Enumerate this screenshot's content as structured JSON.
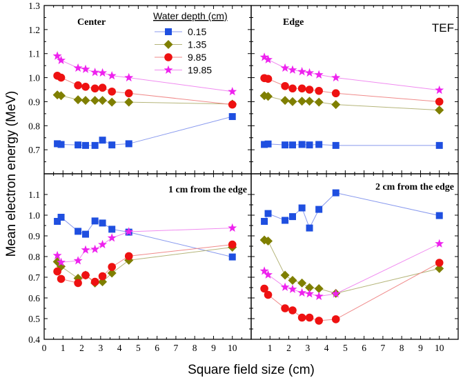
{
  "chart_data": {
    "type": "scatter",
    "xlabel": "Square field size (cm)",
    "ylabel": "Mean electron energy (MeV)",
    "xlim": [
      0,
      11
    ],
    "x_ticks": [
      "0",
      "1",
      "2",
      "3",
      "4",
      "5",
      "6",
      "7",
      "8",
      "9",
      "10"
    ],
    "top_ylim": [
      0.6,
      1.3
    ],
    "top_y_ticks": [
      "0.7",
      "0.8",
      "0.9",
      "1.0",
      "1.1",
      "1.2",
      "1.3"
    ],
    "bottom_ylim": [
      0.4,
      1.2
    ],
    "bottom_y_ticks": [
      "0.4",
      "0.5",
      "0.6",
      "0.7",
      "0.8",
      "0.9",
      "1.0",
      "1.1"
    ],
    "extra_label": "TEF",
    "legend": {
      "title": "Water depth (cm)",
      "placement": "top-left panel, upper center"
    },
    "series": [
      {
        "name": "0.15",
        "color": "#1f4fe0",
        "line_color": "#8899ee",
        "marker": "square"
      },
      {
        "name": "1.35",
        "color": "#7f7f00",
        "line_color": "#b5b57a",
        "marker": "diamond"
      },
      {
        "name": "9.85",
        "color": "#ee1111",
        "line_color": "#f08a8a",
        "marker": "circle"
      },
      {
        "name": "19.85",
        "color": "#ee22ee",
        "line_color": "#f08af0",
        "marker": "star"
      }
    ],
    "panels": [
      {
        "id": "center",
        "title": "Center",
        "row": "top",
        "col": "left",
        "values": {
          "0.15": [
            [
              0.7,
              0.725
            ],
            [
              0.9,
              0.722
            ],
            [
              1.8,
              0.72
            ],
            [
              2.2,
              0.718
            ],
            [
              2.7,
              0.718
            ],
            [
              3.1,
              0.74
            ],
            [
              3.6,
              0.72
            ],
            [
              4.5,
              0.725
            ],
            [
              10,
              0.838
            ]
          ],
          "1.35": [
            [
              0.7,
              0.928
            ],
            [
              0.9,
              0.925
            ],
            [
              1.8,
              0.908
            ],
            [
              2.2,
              0.905
            ],
            [
              2.7,
              0.905
            ],
            [
              3.1,
              0.905
            ],
            [
              3.6,
              0.898
            ],
            [
              4.5,
              0.898
            ],
            [
              10,
              0.89
            ]
          ],
          "9.85": [
            [
              0.7,
              1.008
            ],
            [
              0.9,
              1.0
            ],
            [
              1.8,
              0.968
            ],
            [
              2.2,
              0.962
            ],
            [
              2.7,
              0.955
            ],
            [
              3.1,
              0.958
            ],
            [
              3.6,
              0.942
            ],
            [
              4.5,
              0.935
            ],
            [
              10,
              0.888
            ]
          ],
          "19.85": [
            [
              0.7,
              1.09
            ],
            [
              0.9,
              1.072
            ],
            [
              1.8,
              1.04
            ],
            [
              2.2,
              1.035
            ],
            [
              2.7,
              1.022
            ],
            [
              3.1,
              1.02
            ],
            [
              3.6,
              1.008
            ],
            [
              4.5,
              1.0
            ],
            [
              10,
              0.942
            ]
          ]
        }
      },
      {
        "id": "edge",
        "title": "Edge",
        "row": "top",
        "col": "right",
        "values": {
          "0.15": [
            [
              0.7,
              0.722
            ],
            [
              0.9,
              0.724
            ],
            [
              1.8,
              0.72
            ],
            [
              2.2,
              0.72
            ],
            [
              2.7,
              0.722
            ],
            [
              3.1,
              0.72
            ],
            [
              3.6,
              0.722
            ],
            [
              4.5,
              0.718
            ],
            [
              10,
              0.718
            ]
          ],
          "1.35": [
            [
              0.7,
              0.925
            ],
            [
              0.9,
              0.922
            ],
            [
              1.8,
              0.905
            ],
            [
              2.2,
              0.9
            ],
            [
              2.7,
              0.902
            ],
            [
              3.1,
              0.902
            ],
            [
              3.6,
              0.898
            ],
            [
              4.5,
              0.888
            ],
            [
              10,
              0.865
            ]
          ],
          "9.85": [
            [
              0.7,
              0.998
            ],
            [
              0.9,
              0.995
            ],
            [
              1.8,
              0.965
            ],
            [
              2.2,
              0.955
            ],
            [
              2.7,
              0.955
            ],
            [
              3.1,
              0.95
            ],
            [
              3.6,
              0.945
            ],
            [
              4.5,
              0.935
            ],
            [
              10,
              0.9
            ]
          ],
          "19.85": [
            [
              0.7,
              1.085
            ],
            [
              0.9,
              1.075
            ],
            [
              1.8,
              1.04
            ],
            [
              2.2,
              1.032
            ],
            [
              2.7,
              1.025
            ],
            [
              3.1,
              1.02
            ],
            [
              3.6,
              1.012
            ],
            [
              4.5,
              1.0
            ],
            [
              10,
              0.948
            ]
          ]
        }
      },
      {
        "id": "one-cm",
        "title": "1 cm from the edge",
        "row": "bottom",
        "col": "left",
        "values": {
          "0.15": [
            [
              0.7,
              0.97
            ],
            [
              0.9,
              0.99
            ],
            [
              1.8,
              0.922
            ],
            [
              2.2,
              0.908
            ],
            [
              2.7,
              0.972
            ],
            [
              3.1,
              0.962
            ],
            [
              3.6,
              0.932
            ],
            [
              4.5,
              0.918
            ],
            [
              10,
              0.798
            ]
          ],
          "1.35": [
            [
              0.7,
              0.775
            ],
            [
              0.9,
              0.752
            ],
            [
              1.8,
              0.695
            ],
            [
              2.2,
              0.71
            ],
            [
              2.7,
              0.672
            ],
            [
              3.1,
              0.678
            ],
            [
              3.6,
              0.72
            ],
            [
              4.5,
              0.782
            ],
            [
              10,
              0.845
            ]
          ],
          "9.85": [
            [
              0.7,
              0.728
            ],
            [
              0.9,
              0.692
            ],
            [
              1.8,
              0.672
            ],
            [
              2.2,
              0.71
            ],
            [
              2.7,
              0.678
            ],
            [
              3.1,
              0.705
            ],
            [
              3.6,
              0.75
            ],
            [
              4.5,
              0.802
            ],
            [
              10,
              0.858
            ]
          ],
          "19.85": [
            [
              0.7,
              0.805
            ],
            [
              0.9,
              0.772
            ],
            [
              1.8,
              0.78
            ],
            [
              2.2,
              0.832
            ],
            [
              2.7,
              0.835
            ],
            [
              3.1,
              0.858
            ],
            [
              3.6,
              0.89
            ],
            [
              4.5,
              0.92
            ],
            [
              10,
              0.938
            ]
          ]
        }
      },
      {
        "id": "two-cm",
        "title": "2 cm from the edge",
        "row": "bottom",
        "col": "right",
        "values": {
          "0.15": [
            [
              0.7,
              0.97
            ],
            [
              0.9,
              1.008
            ],
            [
              1.8,
              0.975
            ],
            [
              2.2,
              0.993
            ],
            [
              2.7,
              1.035
            ],
            [
              3.1,
              0.938
            ],
            [
              3.6,
              1.028
            ],
            [
              4.5,
              1.108
            ],
            [
              10,
              0.998
            ]
          ],
          "1.35": [
            [
              0.7,
              0.88
            ],
            [
              0.9,
              0.875
            ],
            [
              1.8,
              0.71
            ],
            [
              2.2,
              0.685
            ],
            [
              2.7,
              0.672
            ],
            [
              3.1,
              0.65
            ],
            [
              3.6,
              0.645
            ],
            [
              4.5,
              0.622
            ],
            [
              10,
              0.742
            ]
          ],
          "9.85": [
            [
              0.7,
              0.645
            ],
            [
              0.9,
              0.615
            ],
            [
              1.8,
              0.55
            ],
            [
              2.2,
              0.54
            ],
            [
              2.7,
              0.505
            ],
            [
              3.1,
              0.505
            ],
            [
              3.6,
              0.49
            ],
            [
              4.5,
              0.497
            ],
            [
              10,
              0.77
            ]
          ],
          "19.85": [
            [
              0.7,
              0.73
            ],
            [
              0.9,
              0.712
            ],
            [
              1.8,
              0.652
            ],
            [
              2.2,
              0.642
            ],
            [
              2.7,
              0.625
            ],
            [
              3.1,
              0.62
            ],
            [
              3.6,
              0.608
            ],
            [
              4.5,
              0.62
            ],
            [
              10,
              0.862
            ]
          ]
        }
      }
    ]
  }
}
